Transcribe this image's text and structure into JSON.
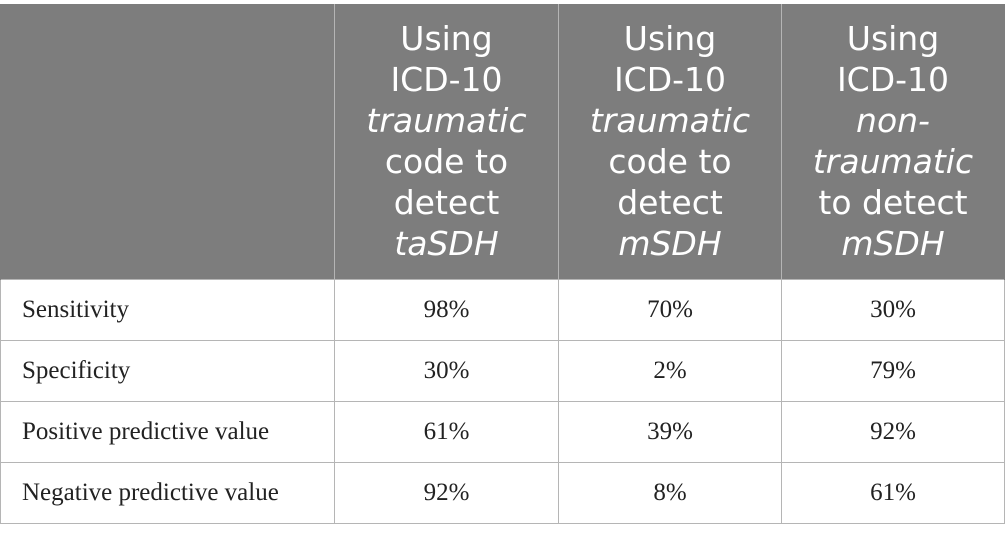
{
  "table": {
    "header": [
      {
        "lines": [
          {
            "t": "",
            "i": false
          }
        ]
      },
      {
        "lines": [
          {
            "t": "Using",
            "i": false
          },
          {
            "t": "ICD-10",
            "i": false
          },
          {
            "t": "traumatic",
            "i": true
          },
          {
            "t": "code to",
            "i": false
          },
          {
            "t": "detect",
            "i": false
          },
          {
            "t": "taSDH",
            "i": true
          }
        ]
      },
      {
        "lines": [
          {
            "t": "Using",
            "i": false
          },
          {
            "t": "ICD-10",
            "i": false
          },
          {
            "t": "traumatic",
            "i": true
          },
          {
            "t": "code to",
            "i": false
          },
          {
            "t": "detect",
            "i": false
          },
          {
            "t": "mSDH",
            "i": true
          }
        ]
      },
      {
        "lines": [
          {
            "t": "Using",
            "i": false
          },
          {
            "t": "ICD-10",
            "i": false
          },
          {
            "t": "non-",
            "i": true
          },
          {
            "t": "traumatic",
            "i": true
          },
          {
            "t": "to detect",
            "i": false
          },
          {
            "t": "mSDH",
            "i": true
          }
        ]
      }
    ],
    "rows": [
      {
        "label": "Sensitivity",
        "values": [
          "98%",
          "70%",
          "30%"
        ]
      },
      {
        "label": "Specificity",
        "values": [
          "30%",
          "2%",
          "79%"
        ]
      },
      {
        "label": "Positive predictive value",
        "values": [
          "61%",
          "39%",
          "92%"
        ]
      },
      {
        "label": "Negative predictive value",
        "values": [
          "92%",
          "8%",
          "61%"
        ]
      }
    ]
  }
}
